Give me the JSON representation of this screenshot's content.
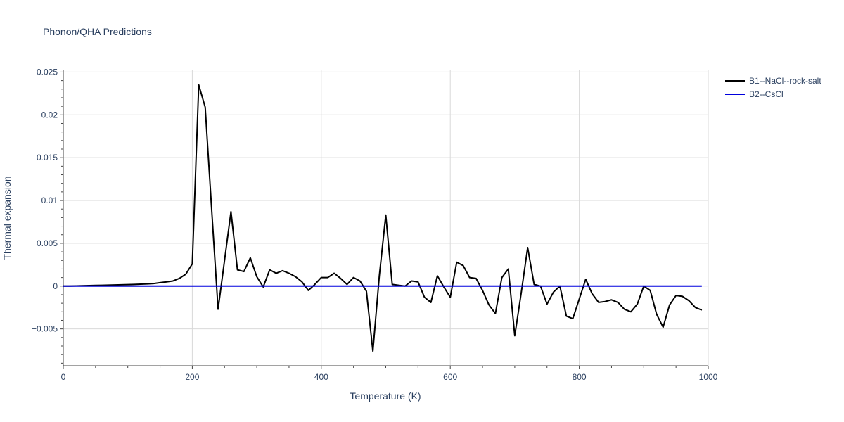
{
  "chart_data": {
    "type": "line",
    "title": "Phonon/QHA Predictions",
    "xlabel": "Temperature (K)",
    "ylabel": "Thermal expansion",
    "xlim": [
      0,
      1000
    ],
    "ylim": [
      -0.0093,
      0.0252
    ],
    "x_ticks": [
      0,
      200,
      400,
      600,
      800,
      1000
    ],
    "x_tick_labels": [
      "0",
      "200",
      "400",
      "600",
      "800",
      "1000"
    ],
    "y_ticks": [
      -0.005,
      0,
      0.005,
      0.01,
      0.015,
      0.02,
      0.025
    ],
    "y_tick_labels": [
      "−0.005",
      "0",
      "0.005",
      "0.01",
      "0.015",
      "0.02",
      "0.025"
    ],
    "grid": true,
    "legend_position": "top-right",
    "series": [
      {
        "name": "B1--NaCl--rock-salt",
        "color": "#000000",
        "x": [
          0,
          10,
          20,
          30,
          40,
          50,
          60,
          70,
          80,
          90,
          100,
          110,
          120,
          130,
          140,
          150,
          160,
          170,
          180,
          190,
          200,
          210,
          220,
          230,
          240,
          250,
          260,
          270,
          280,
          290,
          300,
          310,
          320,
          330,
          340,
          350,
          360,
          370,
          380,
          390,
          400,
          410,
          420,
          430,
          440,
          450,
          460,
          470,
          480,
          490,
          500,
          510,
          520,
          530,
          540,
          550,
          560,
          570,
          580,
          590,
          600,
          610,
          620,
          630,
          640,
          650,
          660,
          670,
          680,
          690,
          700,
          710,
          720,
          730,
          740,
          750,
          760,
          770,
          780,
          790,
          800,
          810,
          820,
          830,
          840,
          850,
          860,
          870,
          880,
          890,
          900,
          910,
          920,
          930,
          940,
          950,
          960,
          970,
          980,
          990
        ],
        "y": [
          0,
          0,
          2e-05,
          4e-05,
          6e-05,
          8e-05,
          0.0001,
          0.00012,
          0.00014,
          0.00016,
          0.00018,
          0.0002,
          0.00023,
          0.00026,
          0.0003,
          0.0004,
          0.0005,
          0.0006,
          0.0009,
          0.0014,
          0.0026,
          0.0235,
          0.0209,
          0.009,
          -0.0027,
          0.003,
          0.0087,
          0.0019,
          0.0017,
          0.0033,
          0.0011,
          -0.0001,
          0.0019,
          0.0015,
          0.0018,
          0.0015,
          0.0011,
          0.0005,
          -0.0005,
          0.0002,
          0.001,
          0.001,
          0.0015,
          0.0009,
          0.0002,
          0.001,
          0.0006,
          -0.0006,
          -0.0076,
          0.0012,
          0.0083,
          0.0002,
          0.0001,
          0.0,
          0.0006,
          0.0005,
          -0.0013,
          -0.0019,
          0.0012,
          -0.0001,
          -0.0013,
          0.0028,
          0.0024,
          0.001,
          0.0009,
          -0.0005,
          -0.0022,
          -0.0032,
          0.001,
          0.002,
          -0.0058,
          -0.0008,
          0.0045,
          0.0002,
          0.0,
          -0.0021,
          -0.0007,
          0.0,
          -0.0035,
          -0.0038,
          -0.0015,
          0.0008,
          -0.0009,
          -0.0019,
          -0.0018,
          -0.0016,
          -0.0019,
          -0.0027,
          -0.003,
          -0.0021,
          0.0,
          -0.0005,
          -0.0033,
          -0.0048,
          -0.0022,
          -0.0011,
          -0.0012,
          -0.0017,
          -0.0025,
          -0.0028
        ]
      },
      {
        "name": "B2--CsCl",
        "color": "#0000dd",
        "x": [
          0,
          100,
          200,
          300,
          400,
          500,
          600,
          700,
          800,
          900,
          990
        ],
        "y": [
          0,
          0,
          0,
          0,
          0,
          0,
          0,
          0,
          0,
          0,
          0
        ]
      }
    ]
  }
}
